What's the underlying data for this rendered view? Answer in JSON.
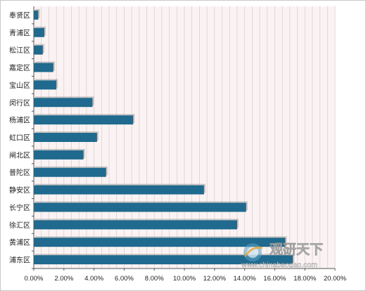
{
  "chart_data": {
    "type": "bar",
    "orientation": "horizontal",
    "categories": [
      "浦东区",
      "黄浦区",
      "徐汇区",
      "长宁区",
      "静安区",
      "普陀区",
      "闸北区",
      "虹口区",
      "杨浦区",
      "闵行区",
      "宝山区",
      "嘉定区",
      "松江区",
      "青浦区",
      "奉贤区"
    ],
    "values": [
      17.2,
      16.7,
      13.5,
      14.1,
      11.3,
      4.8,
      3.3,
      4.2,
      6.6,
      3.9,
      1.5,
      1.3,
      0.6,
      0.7,
      0.3
    ],
    "xlim": [
      0,
      20
    ],
    "xticks": [
      "0.00%",
      "2.00%",
      "4.00%",
      "6.00%",
      "8.00%",
      "10.00%",
      "12.00%",
      "14.00%",
      "16.00%",
      "18.00%",
      "20.00%"
    ],
    "title": "",
    "xlabel": "",
    "ylabel": "",
    "grid": "vertical",
    "legend": "none",
    "colors": {
      "bar": "#1f6a8e",
      "bar_shadow": "#9a9a9a",
      "plot_bg": "#fbf3f3",
      "grid": "#cfc6c6",
      "axis": "#555555"
    }
  },
  "watermark": {
    "brand": "观研天下",
    "url": "www.chinabaogao.com"
  }
}
